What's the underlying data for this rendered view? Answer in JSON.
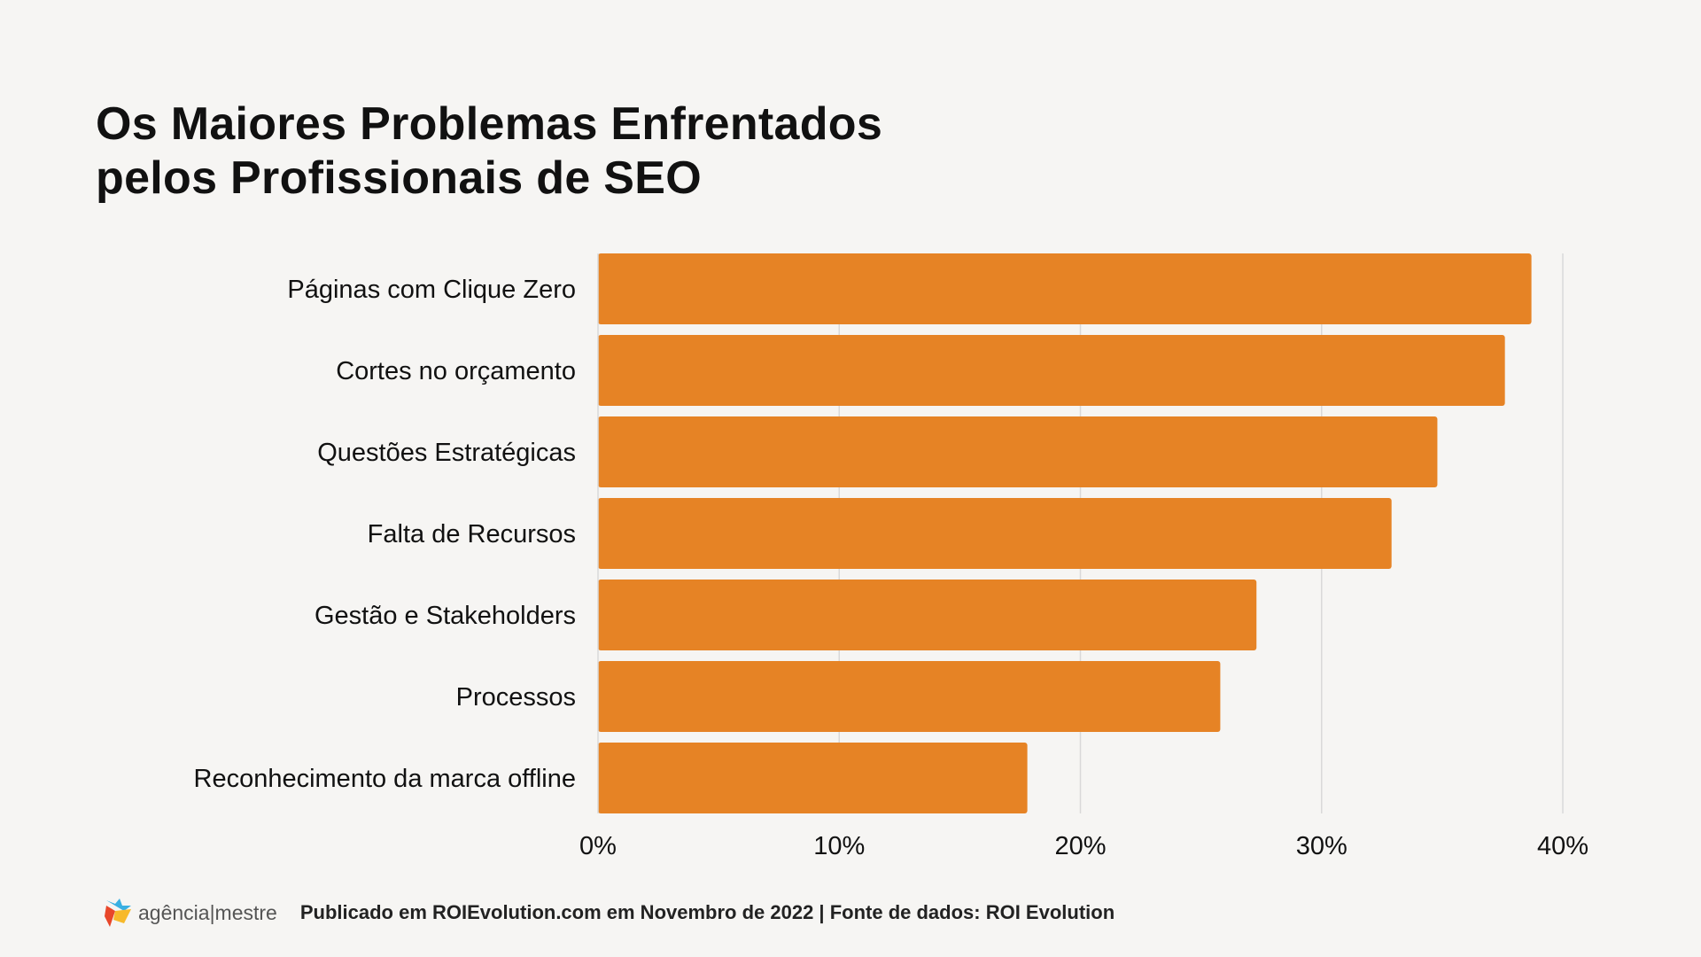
{
  "chart_data": {
    "type": "bar",
    "orientation": "horizontal",
    "title": "Os Maiores Problemas Enfrentados pelos Profissionais de SEO",
    "title_lines": [
      "Os Maiores Problemas Enfrentados",
      "pelos Profissionais de SEO"
    ],
    "categories": [
      "Páginas com Clique Zero",
      "Cortes no orçamento",
      "Questões Estratégicas",
      "Falta de Recursos",
      "Gestão e Stakeholders",
      "Processos",
      "Reconhecimento da marca offline"
    ],
    "values": [
      38.7,
      37.6,
      34.8,
      32.9,
      27.3,
      25.8,
      17.8
    ],
    "unit": "%",
    "xlim": [
      0,
      40
    ],
    "xticks": [
      0,
      10,
      20,
      30,
      40
    ],
    "xtick_labels": [
      "0%",
      "10%",
      "20%",
      "30%",
      "40%"
    ],
    "grid": true,
    "bar_color": "#e68325",
    "xlabel": "",
    "ylabel": ""
  },
  "footer": {
    "logo_text": "agência|mestre",
    "source": "Publicado em ROIEvolution.com em Novembro de 2022 | Fonte de dados: ROI Evolution"
  }
}
